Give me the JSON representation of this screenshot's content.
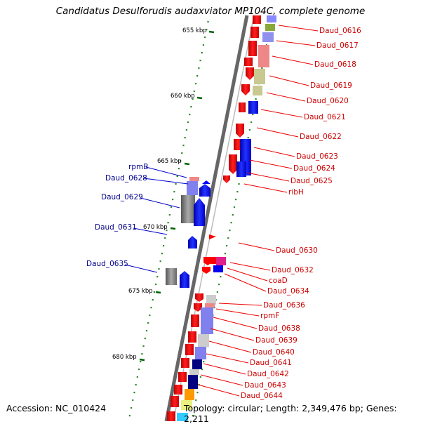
{
  "title": "Candidatus Desulforudis audaxviator MP104C, complete genome",
  "accession": "Accession: NC_010424",
  "topology": "Topology: circular; Length: 2,349,476 bp; Genes: 2,211",
  "colors": {
    "forward_gene": "#0000ff",
    "reverse_gene": "#ff0000",
    "forward_label": "#00008b",
    "reverse_label": "#cc0000",
    "backbone": "#888888",
    "ticks": "#006400"
  },
  "ruler": [
    "655 kbp",
    "660 kbp",
    "665 kbp",
    "670 kbp",
    "675 kbp",
    "680 kbp"
  ],
  "forward_labels": [
    "rpmB",
    "Daud_0628",
    "Daud_0629",
    "Daud_0631",
    "Daud_0635"
  ],
  "reverse_labels": [
    "Daud_0616",
    "Daud_0617",
    "Daud_0618",
    "Daud_0619",
    "Daud_0620",
    "Daud_0621",
    "Daud_0622",
    "Daud_0623",
    "Daud_0624",
    "Daud_0625",
    "ribH",
    "Daud_0630",
    "Daud_0632",
    "coaD",
    "Daud_0634",
    "Daud_0636",
    "rpmF",
    "Daud_0638",
    "Daud_0639",
    "Daud_0640",
    "Daud_0641",
    "Daud_0642",
    "Daud_0643",
    "Daud_0644"
  ]
}
